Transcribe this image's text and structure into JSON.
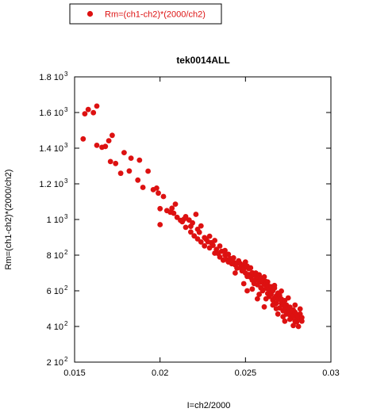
{
  "chart_data": {
    "type": "scatter",
    "title": "tek0014ALL",
    "xlabel": "I=ch2/2000",
    "ylabel": "Rm=(ch1-ch2)*(2000/ch2)",
    "xlim": [
      0.015,
      0.03
    ],
    "ylim": [
      200,
      1800
    ],
    "x_ticks": [
      0.015,
      0.02,
      0.025,
      0.03
    ],
    "x_tick_labels": [
      "0.015",
      "0.02",
      "0.025",
      "0.03"
    ],
    "y_ticks": [
      200,
      400,
      600,
      800,
      1000,
      1200,
      1400,
      1600,
      1800
    ],
    "y_tick_mantissas": [
      "2",
      "4",
      "6",
      "8",
      "1",
      "1.2",
      "1.4",
      "1.6",
      "1.8"
    ],
    "y_tick_bases": [
      "10",
      "10",
      "10",
      "10",
      "10",
      "10",
      "10",
      "10",
      "10"
    ],
    "y_tick_exponents": [
      "2",
      "2",
      "2",
      "2",
      "3",
      "3",
      "3",
      "3",
      "3"
    ],
    "grid": false,
    "legend_position": "top-left, outside plot",
    "marker_color": "#dd1111",
    "series": [
      {
        "name": "Rm=(ch1-ch2)*(2000/ch2)",
        "points": [
          [
            0.0155,
            1452
          ],
          [
            0.0156,
            1593
          ],
          [
            0.0158,
            1617
          ],
          [
            0.0161,
            1599
          ],
          [
            0.0163,
            1636
          ],
          [
            0.0163,
            1416
          ],
          [
            0.0166,
            1405
          ],
          [
            0.0168,
            1410
          ],
          [
            0.017,
            1442
          ],
          [
            0.0171,
            1325
          ],
          [
            0.0172,
            1472
          ],
          [
            0.0174,
            1314
          ],
          [
            0.0177,
            1259
          ],
          [
            0.0179,
            1375
          ],
          [
            0.0182,
            1272
          ],
          [
            0.0183,
            1344
          ],
          [
            0.0187,
            1221
          ],
          [
            0.0188,
            1333
          ],
          [
            0.019,
            1180
          ],
          [
            0.0193,
            1271
          ],
          [
            0.0196,
            1167
          ],
          [
            0.0198,
            1176
          ],
          [
            0.0199,
            1148
          ],
          [
            0.02,
            971
          ],
          [
            0.02,
            1061
          ],
          [
            0.0202,
            1129
          ],
          [
            0.0204,
            1050
          ],
          [
            0.0206,
            1041
          ],
          [
            0.0207,
            1063
          ],
          [
            0.0208,
            1035
          ],
          [
            0.0209,
            1086
          ],
          [
            0.021,
            1012
          ],
          [
            0.0212,
            995
          ],
          [
            0.0213,
            987
          ],
          [
            0.0214,
            1002
          ],
          [
            0.0215,
            1016
          ],
          [
            0.0215,
            956
          ],
          [
            0.0217,
            997
          ],
          [
            0.0218,
            962
          ],
          [
            0.0218,
            930
          ],
          [
            0.0219,
            981
          ],
          [
            0.022,
            908
          ],
          [
            0.0221,
            1029
          ],
          [
            0.0222,
            945
          ],
          [
            0.0222,
            891
          ],
          [
            0.0223,
            928
          ],
          [
            0.0224,
            874
          ],
          [
            0.0224,
            964
          ],
          [
            0.0226,
            898
          ],
          [
            0.0226,
            852
          ],
          [
            0.0227,
            889
          ],
          [
            0.0228,
            875
          ],
          [
            0.0229,
            906
          ],
          [
            0.0229,
            841
          ],
          [
            0.023,
            870
          ],
          [
            0.0231,
            855
          ],
          [
            0.0232,
            811
          ],
          [
            0.0232,
            882
          ],
          [
            0.0233,
            832
          ],
          [
            0.0234,
            810
          ],
          [
            0.0235,
            851
          ],
          [
            0.0235,
            790
          ],
          [
            0.0236,
            822
          ],
          [
            0.0237,
            772
          ],
          [
            0.0238,
            800
          ],
          [
            0.0238,
            826
          ],
          [
            0.0239,
            776
          ],
          [
            0.024,
            762
          ],
          [
            0.024,
            805
          ],
          [
            0.0241,
            781
          ],
          [
            0.0242,
            752
          ],
          [
            0.0243,
            760
          ],
          [
            0.0243,
            785
          ],
          [
            0.0244,
            745
          ],
          [
            0.0245,
            755
          ],
          [
            0.0245,
            727
          ],
          [
            0.0246,
            768
          ],
          [
            0.0247,
            730
          ],
          [
            0.0247,
            752
          ],
          [
            0.0248,
            712
          ],
          [
            0.0249,
            743
          ],
          [
            0.0249,
            724
          ],
          [
            0.025,
            700
          ],
          [
            0.025,
            762
          ],
          [
            0.0251,
            681
          ],
          [
            0.0251,
            738
          ],
          [
            0.0252,
            724
          ],
          [
            0.0252,
            691
          ],
          [
            0.0253,
            676
          ],
          [
            0.0253,
            729
          ],
          [
            0.0254,
            701
          ],
          [
            0.0254,
            660
          ],
          [
            0.0255,
            688
          ],
          [
            0.0255,
            641
          ],
          [
            0.0256,
            700
          ],
          [
            0.0256,
            662
          ],
          [
            0.0257,
            675
          ],
          [
            0.0257,
            634
          ],
          [
            0.0258,
            655
          ],
          [
            0.0258,
            690
          ],
          [
            0.0259,
            617
          ],
          [
            0.0259,
            672
          ],
          [
            0.0259,
            648
          ],
          [
            0.026,
            656
          ],
          [
            0.026,
            600
          ],
          [
            0.0261,
            637
          ],
          [
            0.0261,
            678
          ],
          [
            0.0262,
            614
          ],
          [
            0.0262,
            652
          ],
          [
            0.0263,
            585
          ],
          [
            0.0263,
            632
          ],
          [
            0.0264,
            605
          ],
          [
            0.0264,
            568
          ],
          [
            0.0265,
            623
          ],
          [
            0.0265,
            582
          ],
          [
            0.0266,
            548
          ],
          [
            0.0266,
            600
          ],
          [
            0.0267,
            560
          ],
          [
            0.0267,
            615
          ],
          [
            0.0268,
            572
          ],
          [
            0.0268,
            530
          ],
          [
            0.0269,
            587
          ],
          [
            0.0269,
            552
          ],
          [
            0.027,
            504
          ],
          [
            0.027,
            574
          ],
          [
            0.0271,
            530
          ],
          [
            0.0271,
            554
          ],
          [
            0.0272,
            488
          ],
          [
            0.0272,
            520
          ],
          [
            0.0273,
            545
          ],
          [
            0.0273,
            498
          ],
          [
            0.0274,
            470
          ],
          [
            0.0274,
            520
          ],
          [
            0.0275,
            488
          ],
          [
            0.0275,
            505
          ],
          [
            0.0276,
            465
          ],
          [
            0.0276,
            508
          ],
          [
            0.0277,
            478
          ],
          [
            0.0277,
            448
          ],
          [
            0.0278,
            492
          ],
          [
            0.0278,
            460
          ],
          [
            0.0279,
            430
          ],
          [
            0.0279,
            480
          ],
          [
            0.028,
            450
          ],
          [
            0.028,
            468
          ],
          [
            0.028,
            425
          ],
          [
            0.0281,
            455
          ],
          [
            0.0281,
            400
          ],
          [
            0.0282,
            440
          ],
          [
            0.0282,
            470
          ],
          [
            0.0283,
            430
          ],
          [
            0.0283,
            450
          ],
          [
            0.0262,
            555
          ],
          [
            0.0266,
            520
          ],
          [
            0.0258,
            580
          ],
          [
            0.0272,
            455
          ],
          [
            0.0268,
            500
          ],
          [
            0.0276,
            440
          ],
          [
            0.0254,
            610
          ],
          [
            0.0249,
            640
          ],
          [
            0.0244,
            700
          ],
          [
            0.0263,
            650
          ],
          [
            0.0267,
            630
          ],
          [
            0.0271,
            598
          ],
          [
            0.0275,
            560
          ],
          [
            0.0279,
            520
          ],
          [
            0.0282,
            498
          ],
          [
            0.0251,
            600
          ],
          [
            0.0257,
            555
          ],
          [
            0.0261,
            510
          ],
          [
            0.0269,
            470
          ],
          [
            0.0273,
            430
          ],
          [
            0.0278,
            405
          ]
        ]
      }
    ]
  }
}
